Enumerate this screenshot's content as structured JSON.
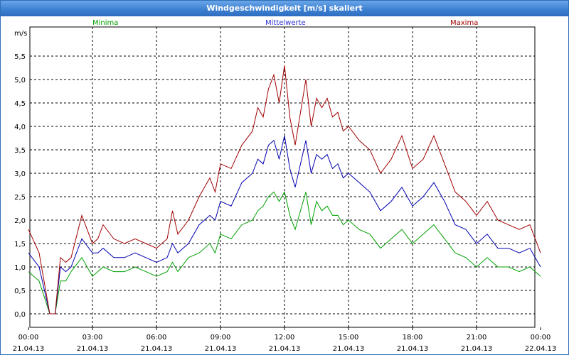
{
  "window": {
    "title": "Windgeschwindigkeit [m/s] skaliert"
  },
  "chart_data": {
    "type": "line",
    "title": "Windgeschwindigkeit [m/s] skaliert",
    "ylabel": "m/s",
    "ylim": [
      0,
      5.8
    ],
    "xlim": [
      0,
      24
    ],
    "grid": true,
    "x_tick_values": [
      0,
      3,
      6,
      9,
      12,
      15,
      18,
      21,
      24
    ],
    "x_ticks": [
      {
        "time": "00:00",
        "date": "21.04.13"
      },
      {
        "time": "03:00",
        "date": "21.04.13"
      },
      {
        "time": "06:00",
        "date": "21.04.13"
      },
      {
        "time": "09:00",
        "date": "21.04.13"
      },
      {
        "time": "12:00",
        "date": "21.04.13"
      },
      {
        "time": "15:00",
        "date": "21.04.13"
      },
      {
        "time": "18:00",
        "date": "21.04.13"
      },
      {
        "time": "21:00",
        "date": "21.04.13"
      },
      {
        "time": "00:00",
        "date": "22.04.13"
      }
    ],
    "y_tick_values": [
      0,
      0.5,
      1,
      1.5,
      2,
      2.5,
      3,
      3.5,
      4,
      4.5,
      5,
      5.5
    ],
    "y_ticks": [
      "0,0",
      "0,5",
      "1,0",
      "1,5",
      "2,0",
      "2,5",
      "3,0",
      "3,5",
      "4,0",
      "4,5",
      "5,0",
      "5,5"
    ],
    "legend_placement": "top",
    "x": [
      0.0,
      0.5,
      1.0,
      1.25,
      1.5,
      1.75,
      2.0,
      2.5,
      3.0,
      3.25,
      3.5,
      4.0,
      4.5,
      5.0,
      5.5,
      6.0,
      6.5,
      6.75,
      7.0,
      7.5,
      8.0,
      8.5,
      8.75,
      9.0,
      9.5,
      10.0,
      10.5,
      10.75,
      11.0,
      11.25,
      11.5,
      11.75,
      12.0,
      12.25,
      12.5,
      12.75,
      13.0,
      13.25,
      13.5,
      13.75,
      14.0,
      14.25,
      14.5,
      14.75,
      15.0,
      15.5,
      16.0,
      16.5,
      17.0,
      17.5,
      18.0,
      18.5,
      19.0,
      19.5,
      20.0,
      20.5,
      21.0,
      21.5,
      22.0,
      22.5,
      23.0,
      23.5,
      24.0
    ],
    "series": [
      {
        "name": "Minima",
        "color": "#00a000",
        "values": [
          0.9,
          0.7,
          0.0,
          0.0,
          0.7,
          0.7,
          0.9,
          1.2,
          0.8,
          0.9,
          1.0,
          0.9,
          0.9,
          1.0,
          0.9,
          0.8,
          0.9,
          1.1,
          0.9,
          1.2,
          1.3,
          1.5,
          1.3,
          1.7,
          1.6,
          1.9,
          2.0,
          2.2,
          2.3,
          2.5,
          2.6,
          2.4,
          2.6,
          2.1,
          1.8,
          2.2,
          2.6,
          1.9,
          2.4,
          2.2,
          2.3,
          2.1,
          2.1,
          1.9,
          2.0,
          1.8,
          1.7,
          1.4,
          1.6,
          1.8,
          1.5,
          1.7,
          1.9,
          1.6,
          1.3,
          1.2,
          1.0,
          1.2,
          1.0,
          1.0,
          0.9,
          1.0,
          0.8
        ]
      },
      {
        "name": "Mittelwerte",
        "color": "#0000b0",
        "values": [
          1.3,
          1.0,
          0.0,
          0.0,
          1.0,
          0.9,
          1.0,
          1.6,
          1.3,
          1.3,
          1.4,
          1.2,
          1.2,
          1.3,
          1.2,
          1.1,
          1.2,
          1.5,
          1.3,
          1.5,
          1.9,
          2.1,
          2.0,
          2.4,
          2.3,
          2.8,
          3.0,
          3.3,
          3.2,
          3.6,
          3.7,
          3.3,
          3.8,
          3.1,
          2.7,
          3.2,
          3.7,
          3.0,
          3.4,
          3.3,
          3.4,
          3.1,
          3.2,
          2.9,
          3.0,
          2.8,
          2.6,
          2.2,
          2.4,
          2.7,
          2.3,
          2.5,
          2.8,
          2.4,
          1.9,
          1.8,
          1.5,
          1.7,
          1.4,
          1.4,
          1.3,
          1.4,
          1.0
        ]
      },
      {
        "name": "Maxima",
        "color": "#a00000",
        "values": [
          1.8,
          1.3,
          0.0,
          0.0,
          1.2,
          1.1,
          1.2,
          2.1,
          1.5,
          1.6,
          1.9,
          1.6,
          1.5,
          1.6,
          1.5,
          1.4,
          1.6,
          2.2,
          1.7,
          2.0,
          2.5,
          2.9,
          2.6,
          3.2,
          3.1,
          3.6,
          3.9,
          4.4,
          4.2,
          4.8,
          5.1,
          4.5,
          5.3,
          4.2,
          3.6,
          4.3,
          5.0,
          4.0,
          4.6,
          4.4,
          4.6,
          4.2,
          4.3,
          3.9,
          4.0,
          3.7,
          3.5,
          3.0,
          3.3,
          3.8,
          3.1,
          3.3,
          3.8,
          3.2,
          2.6,
          2.4,
          2.1,
          2.4,
          2.0,
          1.9,
          1.8,
          1.9,
          1.3
        ]
      }
    ]
  }
}
